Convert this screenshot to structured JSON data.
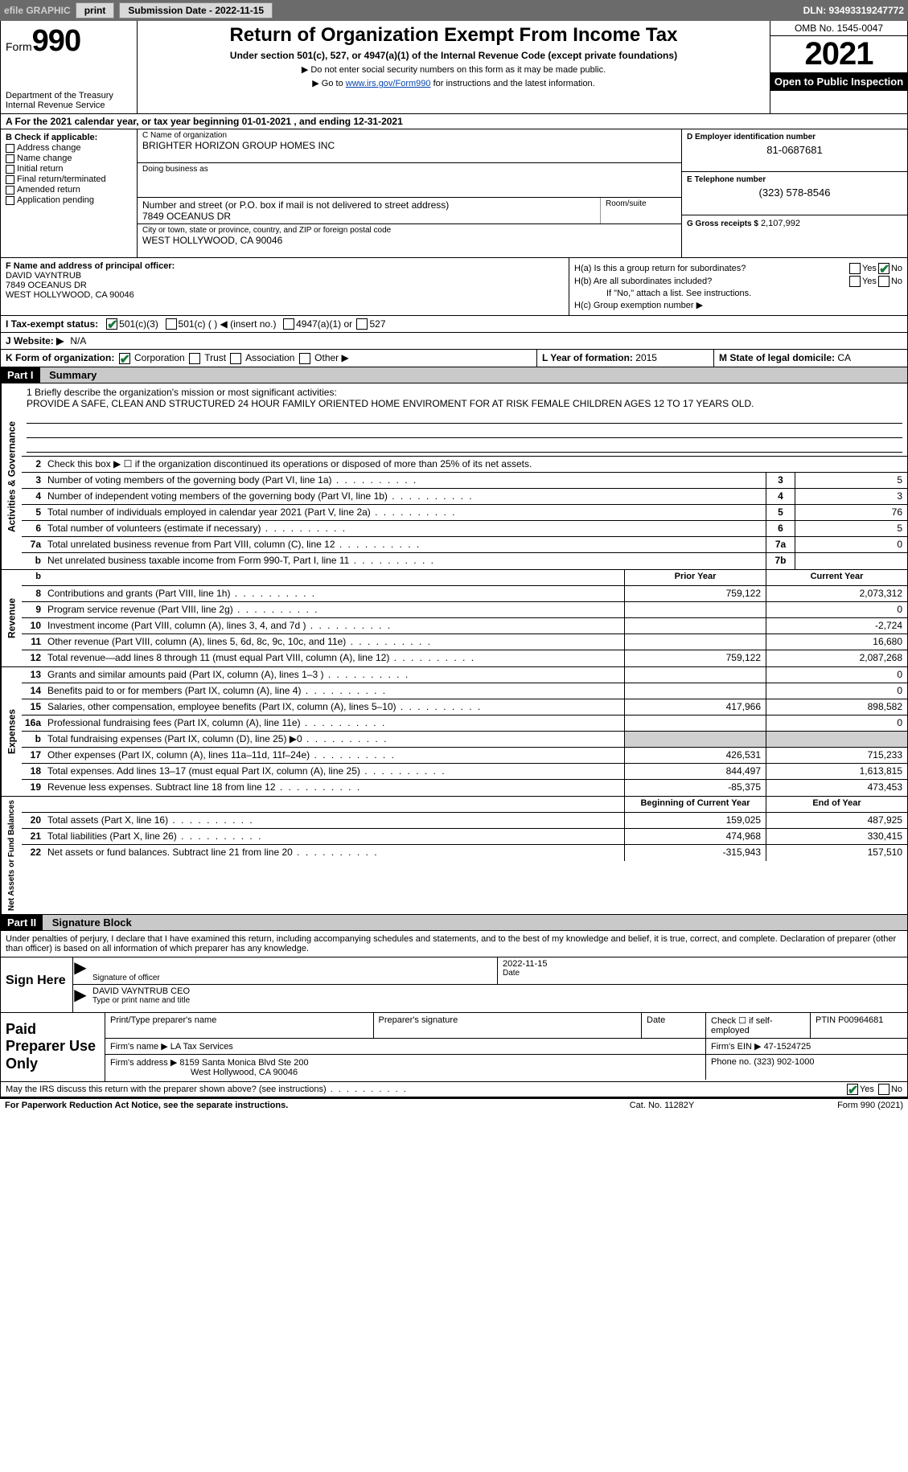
{
  "topbar": {
    "efile": "efile GRAPHIC",
    "print": "print",
    "submission_label": "Submission Date - 2022-11-15",
    "dln": "DLN: 93493319247772"
  },
  "header": {
    "form_word": "Form",
    "form_num": "990",
    "title": "Return of Organization Exempt From Income Tax",
    "subtitle": "Under section 501(c), 527, or 4947(a)(1) of the Internal Revenue Code (except private foundations)",
    "note1": "▶ Do not enter social security numbers on this form as it may be made public.",
    "note2_pre": "▶ Go to ",
    "note2_link": "www.irs.gov/Form990",
    "note2_post": " for instructions and the latest information.",
    "dept": "Department of the Treasury",
    "irs": "Internal Revenue Service",
    "omb": "OMB No. 1545-0047",
    "year": "2021",
    "inspect": "Open to Public Inspection"
  },
  "row_a": "A For the 2021 calendar year, or tax year beginning 01-01-2021    , and ending 12-31-2021",
  "col_b": {
    "hdr": "B Check if applicable:",
    "opts": [
      "Address change",
      "Name change",
      "Initial return",
      "Final return/terminated",
      "Amended return",
      "Application pending"
    ]
  },
  "col_c": {
    "name_lab": "C Name of organization",
    "name": "BRIGHTER HORIZON GROUP HOMES INC",
    "dba_lab": "Doing business as",
    "dba": "",
    "addr_lab": "Number and street (or P.O. box if mail is not delivered to street address)",
    "room_lab": "Room/suite",
    "addr": "7849 OCEANUS DR",
    "city_lab": "City or town, state or province, country, and ZIP or foreign postal code",
    "city": "WEST HOLLYWOOD, CA  90046"
  },
  "col_de": {
    "d_lab": "D Employer identification number",
    "d_val": "81-0687681",
    "e_lab": "E Telephone number",
    "e_val": "(323) 578-8546",
    "g_lab": "G Gross receipts $",
    "g_val": "2,107,992"
  },
  "col_f": {
    "lab": "F Name and address of principal officer:",
    "name": "DAVID VAYNTRUB",
    "addr1": "7849 OCEANUS DR",
    "addr2": "WEST HOLLYWOOD, CA  90046"
  },
  "col_h": {
    "ha": "H(a)  Is this a group return for subordinates?",
    "hb": "H(b)  Are all subordinates included?",
    "hb_note": "If \"No,\" attach a list. See instructions.",
    "hc": "H(c)  Group exemption number ▶",
    "yes": "Yes",
    "no": "No"
  },
  "row_i": {
    "lab": "I  Tax-exempt status:",
    "o1": "501(c)(3)",
    "o2": "501(c) (   ) ◀ (insert no.)",
    "o3": "4947(a)(1) or",
    "o4": "527"
  },
  "row_j": {
    "lab": "J  Website: ▶",
    "val": "N/A"
  },
  "row_k": {
    "lab": "K Form of organization:",
    "o1": "Corporation",
    "o2": "Trust",
    "o3": "Association",
    "o4": "Other ▶"
  },
  "row_l": {
    "lab": "L Year of formation:",
    "val": "2015"
  },
  "row_m": {
    "lab": "M State of legal domicile:",
    "val": "CA"
  },
  "part1": {
    "num": "Part I",
    "title": "Summary"
  },
  "briefly": {
    "lab": "1  Briefly describe the organization's mission or most significant activities:",
    "text": "PROVIDE A SAFE, CLEAN AND STRUCTURED 24 HOUR FAMILY ORIENTED HOME ENVIROMENT FOR AT RISK FEMALE CHILDREN AGES 12 TO 17 YEARS OLD."
  },
  "activities": {
    "side": "Activities & Governance",
    "r2": "Check this box ▶ ☐ if the organization discontinued its operations or disposed of more than 25% of its net assets.",
    "rows": [
      {
        "n": "3",
        "d": "Number of voting members of the governing body (Part VI, line 1a)",
        "box": "3",
        "v": "5"
      },
      {
        "n": "4",
        "d": "Number of independent voting members of the governing body (Part VI, line 1b)",
        "box": "4",
        "v": "3"
      },
      {
        "n": "5",
        "d": "Total number of individuals employed in calendar year 2021 (Part V, line 2a)",
        "box": "5",
        "v": "76"
      },
      {
        "n": "6",
        "d": "Total number of volunteers (estimate if necessary)",
        "box": "6",
        "v": "5"
      },
      {
        "n": "7a",
        "d": "Total unrelated business revenue from Part VIII, column (C), line 12",
        "box": "7a",
        "v": "0"
      },
      {
        "n": "b",
        "d": "Net unrelated business taxable income from Form 990-T, Part I, line 11",
        "box": "7b",
        "v": ""
      }
    ]
  },
  "colhdr": {
    "prior": "Prior Year",
    "current": "Current Year"
  },
  "revenue": {
    "side": "Revenue",
    "rows": [
      {
        "n": "8",
        "d": "Contributions and grants (Part VIII, line 1h)",
        "p": "759,122",
        "c": "2,073,312"
      },
      {
        "n": "9",
        "d": "Program service revenue (Part VIII, line 2g)",
        "p": "",
        "c": "0"
      },
      {
        "n": "10",
        "d": "Investment income (Part VIII, column (A), lines 3, 4, and 7d )",
        "p": "",
        "c": "-2,724"
      },
      {
        "n": "11",
        "d": "Other revenue (Part VIII, column (A), lines 5, 6d, 8c, 9c, 10c, and 11e)",
        "p": "",
        "c": "16,680"
      },
      {
        "n": "12",
        "d": "Total revenue—add lines 8 through 11 (must equal Part VIII, column (A), line 12)",
        "p": "759,122",
        "c": "2,087,268"
      }
    ]
  },
  "expenses": {
    "side": "Expenses",
    "rows": [
      {
        "n": "13",
        "d": "Grants and similar amounts paid (Part IX, column (A), lines 1–3 )",
        "p": "",
        "c": "0"
      },
      {
        "n": "14",
        "d": "Benefits paid to or for members (Part IX, column (A), line 4)",
        "p": "",
        "c": "0"
      },
      {
        "n": "15",
        "d": "Salaries, other compensation, employee benefits (Part IX, column (A), lines 5–10)",
        "p": "417,966",
        "c": "898,582"
      },
      {
        "n": "16a",
        "d": "Professional fundraising fees (Part IX, column (A), line 11e)",
        "p": "",
        "c": "0"
      },
      {
        "n": "b",
        "d": "Total fundraising expenses (Part IX, column (D), line 25) ▶0",
        "p": "shade",
        "c": "shade"
      },
      {
        "n": "17",
        "d": "Other expenses (Part IX, column (A), lines 11a–11d, 11f–24e)",
        "p": "426,531",
        "c": "715,233"
      },
      {
        "n": "18",
        "d": "Total expenses. Add lines 13–17 (must equal Part IX, column (A), line 25)",
        "p": "844,497",
        "c": "1,613,815"
      },
      {
        "n": "19",
        "d": "Revenue less expenses. Subtract line 18 from line 12",
        "p": "-85,375",
        "c": "473,453"
      }
    ]
  },
  "netassets": {
    "side": "Net Assets or Fund Balances",
    "hdr_begin": "Beginning of Current Year",
    "hdr_end": "End of Year",
    "rows": [
      {
        "n": "20",
        "d": "Total assets (Part X, line 16)",
        "p": "159,025",
        "c": "487,925"
      },
      {
        "n": "21",
        "d": "Total liabilities (Part X, line 26)",
        "p": "474,968",
        "c": "330,415"
      },
      {
        "n": "22",
        "d": "Net assets or fund balances. Subtract line 21 from line 20",
        "p": "-315,943",
        "c": "157,510"
      }
    ]
  },
  "part2": {
    "num": "Part II",
    "title": "Signature Block"
  },
  "declaration": "Under penalties of perjury, I declare that I have examined this return, including accompanying schedules and statements, and to the best of my knowledge and belief, it is true, correct, and complete. Declaration of preparer (other than officer) is based on all information of which preparer has any knowledge.",
  "sign": {
    "label": "Sign Here",
    "sig_lab": "Signature of officer",
    "date": "2022-11-15",
    "date_lab": "Date",
    "name": "DAVID VAYNTRUB  CEO",
    "name_lab": "Type or print name and title"
  },
  "prep": {
    "label": "Paid Preparer Use Only",
    "name_lab": "Print/Type preparer's name",
    "sig_lab": "Preparer's signature",
    "date_lab": "Date",
    "self_lab": "Check ☐ if self-employed",
    "ptin_lab": "PTIN",
    "ptin": "P00964681",
    "firm_lab": "Firm's name    ▶",
    "firm": "LA Tax Services",
    "ein_lab": "Firm's EIN ▶",
    "ein": "47-1524725",
    "addr_lab": "Firm's address ▶",
    "addr1": "8159 Santa Monica Blvd Ste 200",
    "addr2": "West Hollywood, CA  90046",
    "phone_lab": "Phone no.",
    "phone": "(323) 902-1000"
  },
  "discuss": {
    "text": "May the IRS discuss this return with the preparer shown above? (see instructions)",
    "yes": "Yes",
    "no": "No"
  },
  "footer": {
    "left": "For Paperwork Reduction Act Notice, see the separate instructions.",
    "mid": "Cat. No. 11282Y",
    "right": "Form 990 (2021)"
  }
}
